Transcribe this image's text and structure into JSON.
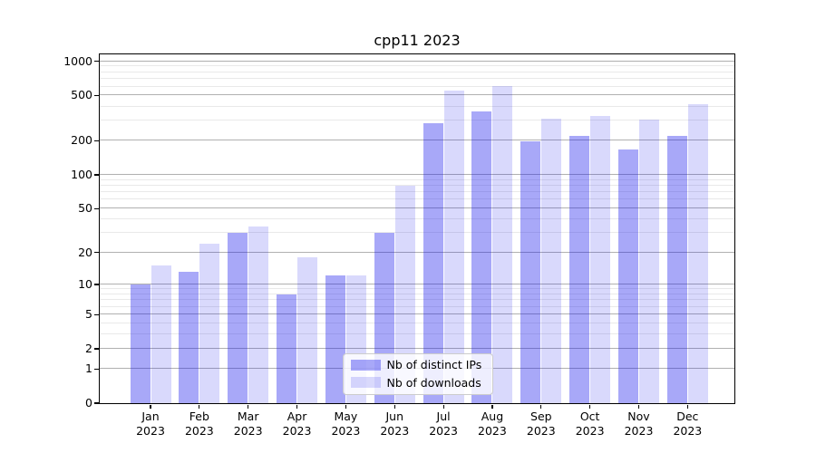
{
  "chart_data": {
    "type": "bar",
    "title": "cpp11 2023",
    "categories": [
      "Jan 2023",
      "Feb 2023",
      "Mar 2023",
      "Apr 2023",
      "May 2023",
      "Jun 2023",
      "Jul 2023",
      "Aug 2023",
      "Sep 2023",
      "Oct 2023",
      "Nov 2023",
      "Dec 2023"
    ],
    "series": [
      {
        "name": "Nb of distinct IPs",
        "color": "#1414EB5E",
        "values": [
          10,
          13,
          30,
          8,
          12,
          30,
          285,
          360,
          195,
          220,
          165,
          220
        ]
      },
      {
        "name": "Nb of downloads",
        "color": "#1414EB29",
        "values": [
          15,
          24,
          34,
          18,
          12,
          80,
          550,
          600,
          310,
          330,
          305,
          420
        ]
      }
    ],
    "y_scale": "log1p",
    "y_axis": {
      "ticks": [
        0,
        1,
        2,
        5,
        10,
        20,
        50,
        100,
        200,
        500,
        1000
      ],
      "minor_ticks": [
        3,
        4,
        6,
        7,
        8,
        9,
        30,
        40,
        60,
        70,
        80,
        90,
        300,
        400,
        600,
        700,
        800,
        900
      ],
      "max": 1150
    },
    "xlabel": "",
    "ylabel": "",
    "grid": true,
    "legend_position": "lower-center-inside",
    "colors": {
      "major_grid": "#b0b0b0",
      "minor_grid": "#e9e9e9",
      "axis": "#000000",
      "background": "#ffffff",
      "bar_distinct_ips": "#1414EB5E",
      "bar_downloads": "#1414EB29"
    }
  }
}
